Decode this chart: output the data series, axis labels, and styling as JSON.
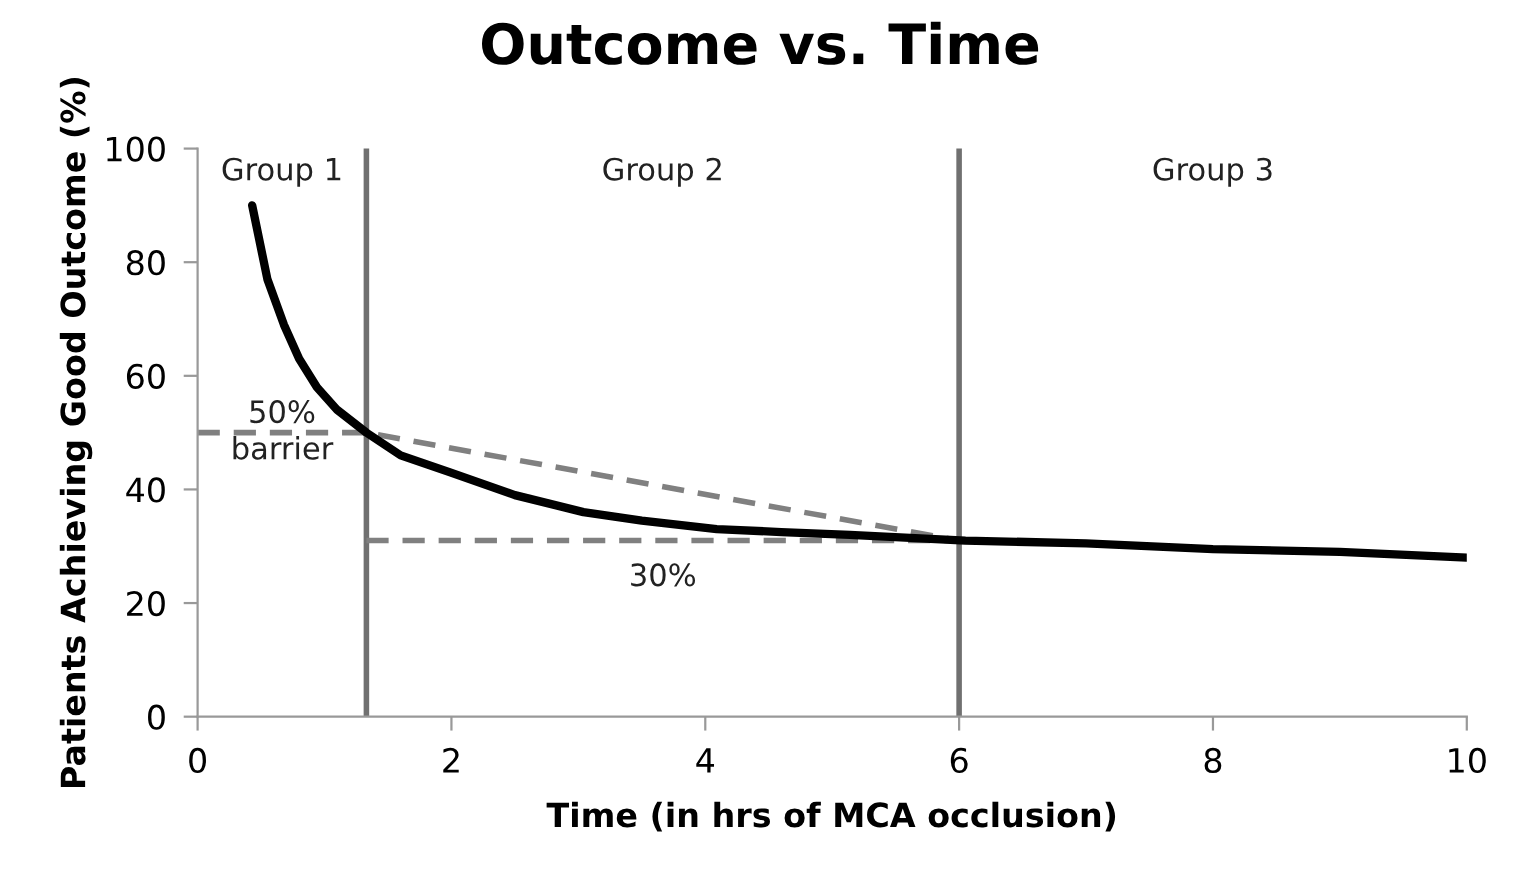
{
  "chart_data": {
    "type": "line",
    "title": "Outcome vs. Time",
    "xlabel": "Time (in hrs of MCA occlusion)",
    "ylabel": "Patients Achieving Good Outcome (%)",
    "xlim": [
      0,
      10
    ],
    "xticks": [
      0,
      2,
      4,
      6,
      8,
      10
    ],
    "ylim": [
      0,
      100
    ],
    "yticks": [
      0,
      20,
      40,
      60,
      80,
      100
    ],
    "grid": false,
    "legend": false,
    "marker": "none",
    "series": [
      {
        "color": "#000000",
        "line_style": "solid",
        "x": [
          0.43,
          0.55,
          0.68,
          0.8,
          0.94,
          1.1,
          1.33,
          1.6,
          1.99,
          2.5,
          3.04,
          3.5,
          4.09,
          4.6,
          5.14,
          6.05,
          7,
          8,
          9,
          10
        ],
        "values": [
          90,
          77,
          69,
          63,
          58,
          54,
          50,
          46,
          43,
          39,
          36,
          34.5,
          33,
          32.5,
          32,
          31,
          30.5,
          29.5,
          29,
          28
        ]
      },
      {
        "name": "50%\nbarrier",
        "color": "#808080",
        "line_style": "dashed",
        "x": [
          0,
          1.33,
          6
        ],
        "values": [
          50,
          50,
          31
        ]
      },
      {
        "name": "30%",
        "color": "#808080",
        "line_style": "dashed",
        "x": [
          1.33,
          6
        ],
        "values": [
          31,
          31
        ]
      }
    ],
    "ref_lines": [
      {
        "axis": "x",
        "value": 1.33,
        "color": "#707070"
      },
      {
        "axis": "x",
        "value": 6,
        "color": "#707070"
      }
    ],
    "annotations": [
      "Group 1",
      "Group 2",
      "Group 3"
    ]
  }
}
